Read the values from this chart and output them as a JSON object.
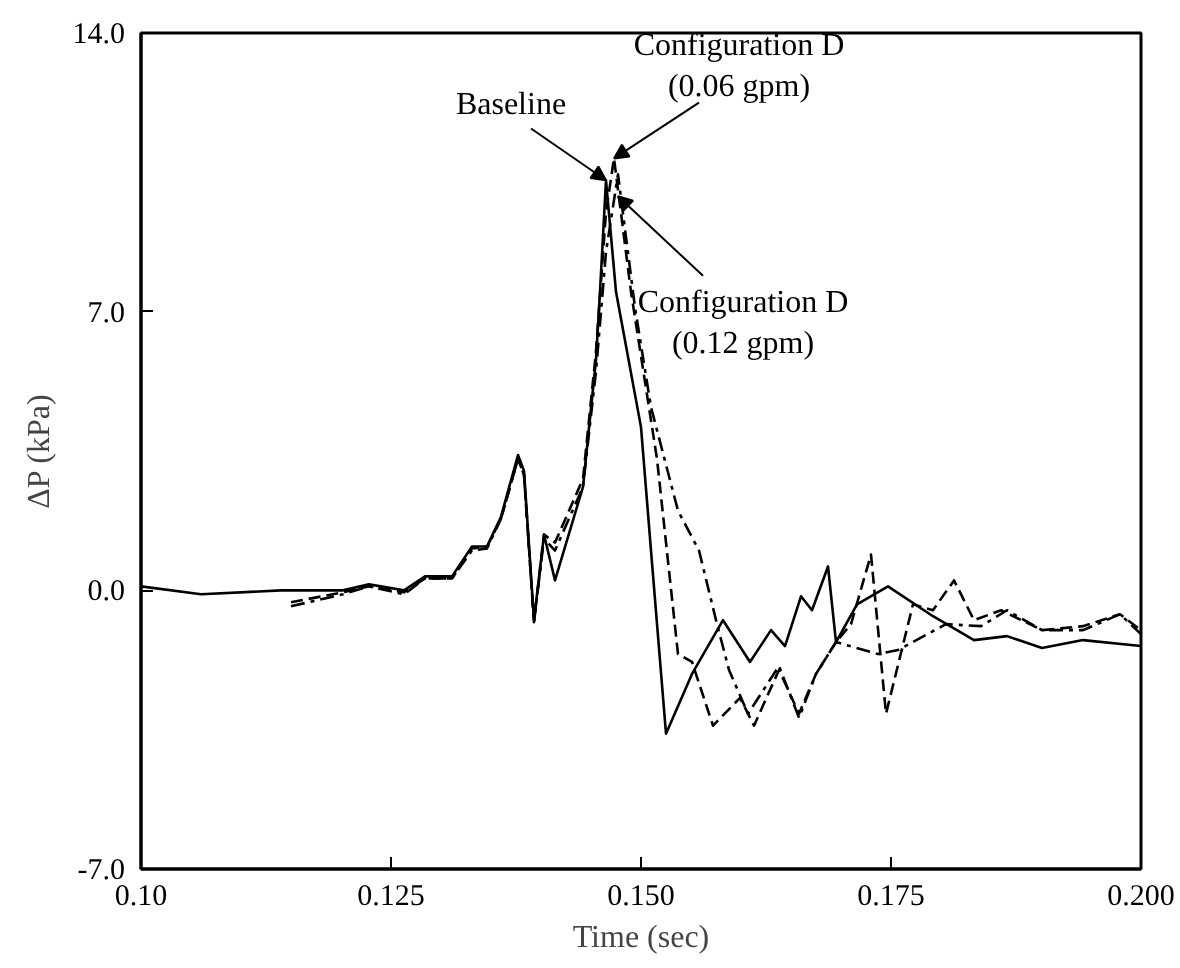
{
  "chart_data": {
    "type": "line",
    "xlabel": "Time (sec)",
    "ylabel": "ΔP (kPa)",
    "xlim": [
      0.1,
      0.2
    ],
    "ylim": [
      -7,
      14
    ],
    "xticks": [
      {
        "value": 0.1,
        "label": "0.10"
      },
      {
        "value": 0.125,
        "label": "0.125"
      },
      {
        "value": 0.15,
        "label": "0.150"
      },
      {
        "value": 0.175,
        "label": "0.175"
      },
      {
        "value": 0.2,
        "label": "0.200"
      }
    ],
    "yticks": [
      {
        "value": -7,
        "label": "-7.0"
      },
      {
        "value": 0,
        "label": "0.0"
      },
      {
        "value": 7,
        "label": "7.0"
      },
      {
        "value": 14,
        "label": "14.0"
      }
    ],
    "grid": false,
    "marker": "none",
    "annotations": [
      {
        "text": "Baseline",
        "x": 0.1465,
        "y": 10.3
      },
      {
        "text": "Configuration D\n(0.06 gpm)",
        "x": 0.1473,
        "y": 10.85
      },
      {
        "text": "Configuration D\n(0.12 gpm)",
        "x": 0.1477,
        "y": 9.9
      }
    ],
    "series": [
      {
        "color": "#000000",
        "line_style": "solid",
        "x": [
          0.1,
          0.106,
          0.114,
          0.1202,
          0.1228,
          0.1263,
          0.1284,
          0.1311,
          0.1331,
          0.1346,
          0.136,
          0.1377,
          0.1383,
          0.1393,
          0.1403,
          0.1414,
          0.1442,
          0.1455,
          0.1459,
          0.1465,
          0.1475,
          0.15,
          0.151,
          0.1525,
          0.1551,
          0.1582,
          0.1609,
          0.163,
          0.1644,
          0.166,
          0.1671,
          0.1687,
          0.1695,
          0.1716,
          0.1747,
          0.1792,
          0.1833,
          0.1866,
          0.1901,
          0.1942,
          0.2
        ],
        "values": [
          0.1,
          -0.1,
          0,
          0,
          0.15,
          0,
          0.35,
          0.35,
          1.1,
          1.1,
          1.85,
          3.4,
          3.0,
          -0.75,
          1.4,
          0.25,
          2.6,
          5.8,
          7.5,
          10.3,
          7.5,
          4.1,
          1.0,
          -3.6,
          -2.1,
          -0.75,
          -1.8,
          -1.0,
          -1.4,
          -0.15,
          -0.5,
          0.6,
          -1.3,
          -0.35,
          0.1,
          -0.65,
          -1.25,
          -1.15,
          -1.45,
          -1.25,
          -1.4
        ]
      },
      {
        "color": "#000000",
        "line_style": "dashed",
        "x": [
          0.115,
          0.1202,
          0.1228,
          0.1263,
          0.1284,
          0.1311,
          0.1331,
          0.1346,
          0.136,
          0.1377,
          0.1383,
          0.1393,
          0.1403,
          0.1414,
          0.1442,
          0.1455,
          0.1465,
          0.1473,
          0.149,
          0.1516,
          0.1537,
          0.1551,
          0.1572,
          0.1599,
          0.1613,
          0.1638,
          0.1658,
          0.1675,
          0.1695,
          0.171,
          0.173,
          0.1745,
          0.1772,
          0.1792,
          0.1813,
          0.1833,
          0.186,
          0.1901,
          0.1942,
          0.1979,
          0.2
        ],
        "values": [
          -0.3,
          -0.05,
          0.1,
          -0.05,
          0.3,
          0.3,
          1.05,
          1.1,
          1.8,
          3.3,
          2.9,
          -0.8,
          1.4,
          1.2,
          2.8,
          6.0,
          9.5,
          10.85,
          7.5,
          3.3,
          -1.6,
          -1.8,
          -3.4,
          -2.7,
          -3.4,
          -2.0,
          -3.1,
          -2.1,
          -1.3,
          -0.85,
          0.9,
          -3.1,
          -0.35,
          -0.5,
          0.25,
          -0.75,
          -0.5,
          -1.0,
          -0.9,
          -0.6,
          -1.0
        ]
      },
      {
        "color": "#000000",
        "line_style": "dashdot",
        "x": [
          0.115,
          0.1202,
          0.1228,
          0.1263,
          0.1284,
          0.1311,
          0.1331,
          0.1346,
          0.136,
          0.1377,
          0.1383,
          0.1393,
          0.1403,
          0.1414,
          0.1442,
          0.1455,
          0.1465,
          0.1477,
          0.1494,
          0.151,
          0.1537,
          0.1558,
          0.1576,
          0.1588,
          0.1607,
          0.1638,
          0.1658,
          0.1675,
          0.1695,
          0.1737,
          0.1757,
          0.1805,
          0.184,
          0.1866,
          0.1901,
          0.1942,
          0.1979,
          0.2
        ],
        "values": [
          -0.4,
          -0.1,
          0.1,
          -0.1,
          0.3,
          0.3,
          1.0,
          1.05,
          1.8,
          3.3,
          2.9,
          -0.8,
          1.3,
          1.0,
          2.6,
          5.5,
          8.5,
          10.45,
          7.1,
          4.6,
          2.0,
          1.0,
          -0.85,
          -2.0,
          -3.1,
          -1.9,
          -3.2,
          -2.1,
          -1.3,
          -1.6,
          -1.5,
          -0.85,
          -0.9,
          -0.5,
          -1.0,
          -1.0,
          -0.6,
          -1.1
        ]
      }
    ]
  }
}
